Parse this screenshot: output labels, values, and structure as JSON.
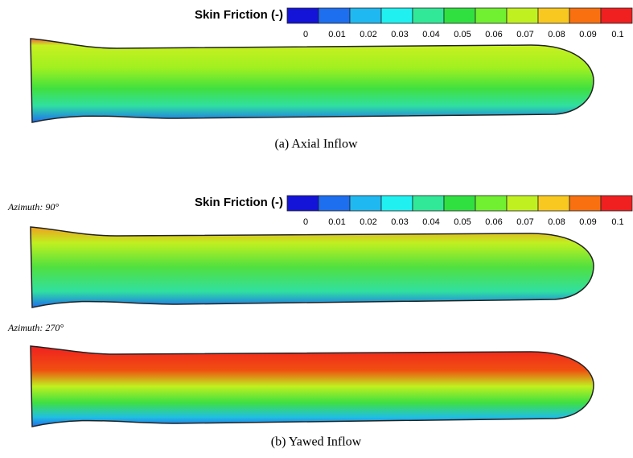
{
  "figure": {
    "legends": [
      {
        "title": "Skin Friction (-)",
        "ticks": [
          0,
          0.01,
          0.02,
          0.03,
          0.04,
          0.05,
          0.06,
          0.07,
          0.08,
          0.09,
          0.1
        ],
        "colors": [
          "#1414d8",
          "#1e6ef0",
          "#20b8f0",
          "#20f0f0",
          "#30e898",
          "#30e040",
          "#70f030",
          "#c0f020",
          "#f8c820",
          "#f87010",
          "#f02020"
        ]
      },
      {
        "title": "Skin Friction (-)",
        "ticks": [
          0,
          0.01,
          0.02,
          0.03,
          0.04,
          0.05,
          0.06,
          0.07,
          0.08,
          0.09,
          0.1
        ],
        "colors": [
          "#1414d8",
          "#1e6ef0",
          "#20b8f0",
          "#20f0f0",
          "#30e898",
          "#30e040",
          "#70f030",
          "#c0f020",
          "#f8c820",
          "#f87010",
          "#f02020"
        ]
      }
    ],
    "captions": [
      "(a) Axial Inflow",
      "(b) Yawed Inflow"
    ],
    "views": [
      "Azimuth: 90°",
      "Azimuth: 270°"
    ]
  }
}
